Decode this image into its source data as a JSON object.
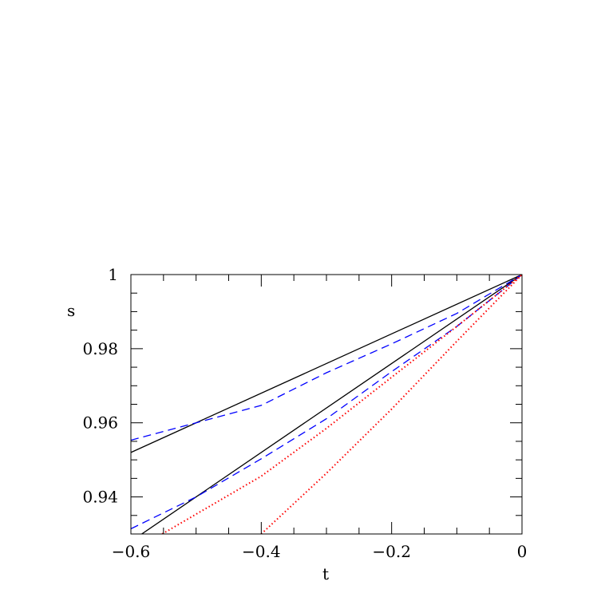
{
  "chart_data": {
    "type": "line",
    "title": "",
    "xlabel": "t",
    "ylabel": "s",
    "xlim": [
      -0.6,
      0
    ],
    "ylim": [
      0.93,
      1
    ],
    "xticks": [
      -0.6,
      -0.4,
      -0.2,
      0
    ],
    "xtick_labels": [
      "−0.6",
      "−0.4",
      "−0.2",
      "0"
    ],
    "yticks": [
      0.94,
      0.96,
      0.98,
      1
    ],
    "ytick_labels": [
      "0.94",
      "0.96",
      "0.98",
      "1"
    ],
    "x_minor_step": 0.05,
    "y_minor_step": 0.005,
    "grid": false,
    "series": [
      {
        "style": "solid",
        "color": "#000000",
        "x": [
          -0.6,
          0
        ],
        "y": [
          0.952,
          1.0
        ]
      },
      {
        "style": "solid",
        "color": "#000000",
        "x": [
          -0.6,
          0
        ],
        "y": [
          0.928,
          1.0
        ]
      },
      {
        "style": "dashed",
        "color": "#0000ff",
        "x": [
          -0.6,
          -0.5,
          -0.4,
          -0.3,
          -0.2,
          -0.1,
          0
        ],
        "y": [
          0.9553,
          0.96,
          0.9647,
          0.9735,
          0.9813,
          0.9895,
          1.0
        ]
      },
      {
        "style": "dashed",
        "color": "#0000ff",
        "x": [
          -0.6,
          -0.5,
          -0.4,
          -0.3,
          -0.2,
          -0.1,
          0
        ],
        "y": [
          0.9314,
          0.94,
          0.9503,
          0.9611,
          0.9738,
          0.986,
          1.0
        ]
      },
      {
        "style": "dotted",
        "color": "#ff0000",
        "x": [
          -0.552,
          -0.4,
          -0.3,
          -0.2,
          -0.1,
          0
        ],
        "y": [
          0.93,
          0.9456,
          0.9585,
          0.9723,
          0.986,
          1.0
        ]
      },
      {
        "style": "dotted",
        "color": "#ff0000",
        "x": [
          -0.4,
          -0.3,
          -0.2,
          -0.1,
          0
        ],
        "y": [
          0.93,
          0.9464,
          0.9637,
          0.982,
          1.0
        ]
      }
    ]
  }
}
